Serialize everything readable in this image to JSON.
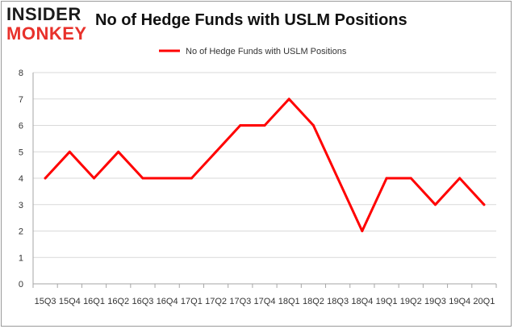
{
  "logo": {
    "line1": "INSIDER",
    "line2": "MONKEY"
  },
  "colors": {
    "series": "#ff0000",
    "grid": "#d9d9d9",
    "axis": "#a6a6a6",
    "frame": "#9a9a9a",
    "brand_red": "#e8312b"
  },
  "chart_data": {
    "type": "line",
    "title": "No of Hedge Funds with USLM Positions",
    "xlabel": "",
    "ylabel": "",
    "categories": [
      "15Q3",
      "15Q4",
      "16Q1",
      "16Q2",
      "16Q3",
      "16Q4",
      "17Q1",
      "17Q2",
      "17Q3",
      "17Q4",
      "18Q1",
      "18Q2",
      "18Q3",
      "18Q4",
      "19Q1",
      "19Q2",
      "19Q3",
      "19Q4",
      "20Q1"
    ],
    "series": [
      {
        "name": "No of Hedge Funds with USLM Positions",
        "values": [
          4,
          5,
          4,
          5,
          4,
          4,
          4,
          5,
          6,
          6,
          7,
          6,
          4,
          2,
          4,
          4,
          3,
          4,
          3
        ]
      }
    ],
    "ylim": [
      0,
      8
    ],
    "yticks": [
      0,
      1,
      2,
      3,
      4,
      5,
      6,
      7,
      8
    ],
    "grid": true,
    "legend": "top-center"
  }
}
